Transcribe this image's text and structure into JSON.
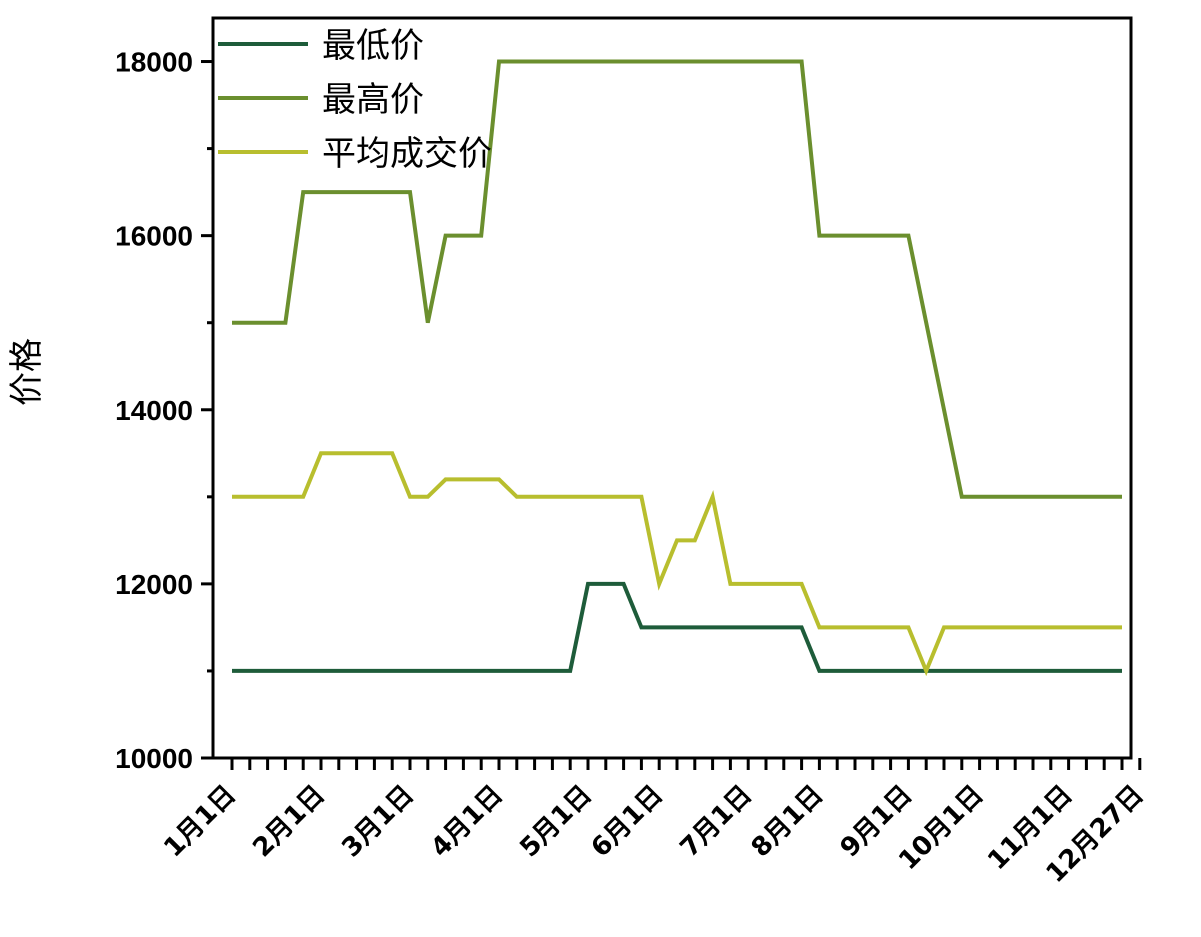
{
  "chart_data": {
    "type": "line",
    "ylabel": "价格",
    "xlabel": "",
    "ylim": [
      10000,
      18500
    ],
    "yticks": [
      10000,
      12000,
      14000,
      16000,
      18000
    ],
    "x_count": 51,
    "x_tick_labels": [
      {
        "index": 0,
        "label": "1月1日"
      },
      {
        "index": 5,
        "label": "2月1日"
      },
      {
        "index": 10,
        "label": "3月1日"
      },
      {
        "index": 15,
        "label": "4月1日"
      },
      {
        "index": 20,
        "label": "5月1日"
      },
      {
        "index": 24,
        "label": "6月1日"
      },
      {
        "index": 29,
        "label": "7月1日"
      },
      {
        "index": 33,
        "label": "8月1日"
      },
      {
        "index": 38,
        "label": "9月1日"
      },
      {
        "index": 42,
        "label": "10月1日"
      },
      {
        "index": 47,
        "label": "11月1日"
      },
      {
        "index": 51,
        "label": "12月27日"
      }
    ],
    "legend_position": "top-left",
    "series": [
      {
        "name": "最低价",
        "color": "#1e5c3a",
        "points": [
          [
            0,
            11000
          ],
          [
            19,
            11000
          ],
          [
            20,
            12000
          ],
          [
            22,
            12000
          ],
          [
            23,
            11500
          ],
          [
            32,
            11500
          ],
          [
            33,
            11000
          ],
          [
            50,
            11000
          ]
        ]
      },
      {
        "name": "最高价",
        "color": "#6b8f2e",
        "points": [
          [
            0,
            15000
          ],
          [
            3,
            15000
          ],
          [
            4,
            16500
          ],
          [
            10,
            16500
          ],
          [
            11,
            15000
          ],
          [
            12,
            16000
          ],
          [
            14,
            16000
          ],
          [
            15,
            18000
          ],
          [
            32,
            18000
          ],
          [
            33,
            16000
          ],
          [
            38,
            16000
          ],
          [
            41,
            13000
          ],
          [
            50,
            13000
          ]
        ]
      },
      {
        "name": "平均成交价",
        "color": "#b8be2e",
        "points": [
          [
            0,
            13000
          ],
          [
            4,
            13000
          ],
          [
            5,
            13500
          ],
          [
            9,
            13500
          ],
          [
            10,
            13000
          ],
          [
            11,
            13000
          ],
          [
            12,
            13200
          ],
          [
            15,
            13200
          ],
          [
            16,
            13000
          ],
          [
            23,
            13000
          ],
          [
            24,
            12000
          ],
          [
            25,
            12500
          ],
          [
            26,
            12500
          ],
          [
            27,
            13000
          ],
          [
            28,
            12000
          ],
          [
            32,
            12000
          ],
          [
            33,
            11500
          ],
          [
            38,
            11500
          ],
          [
            39,
            11000
          ],
          [
            40,
            11500
          ],
          [
            50,
            11500
          ]
        ]
      }
    ]
  }
}
